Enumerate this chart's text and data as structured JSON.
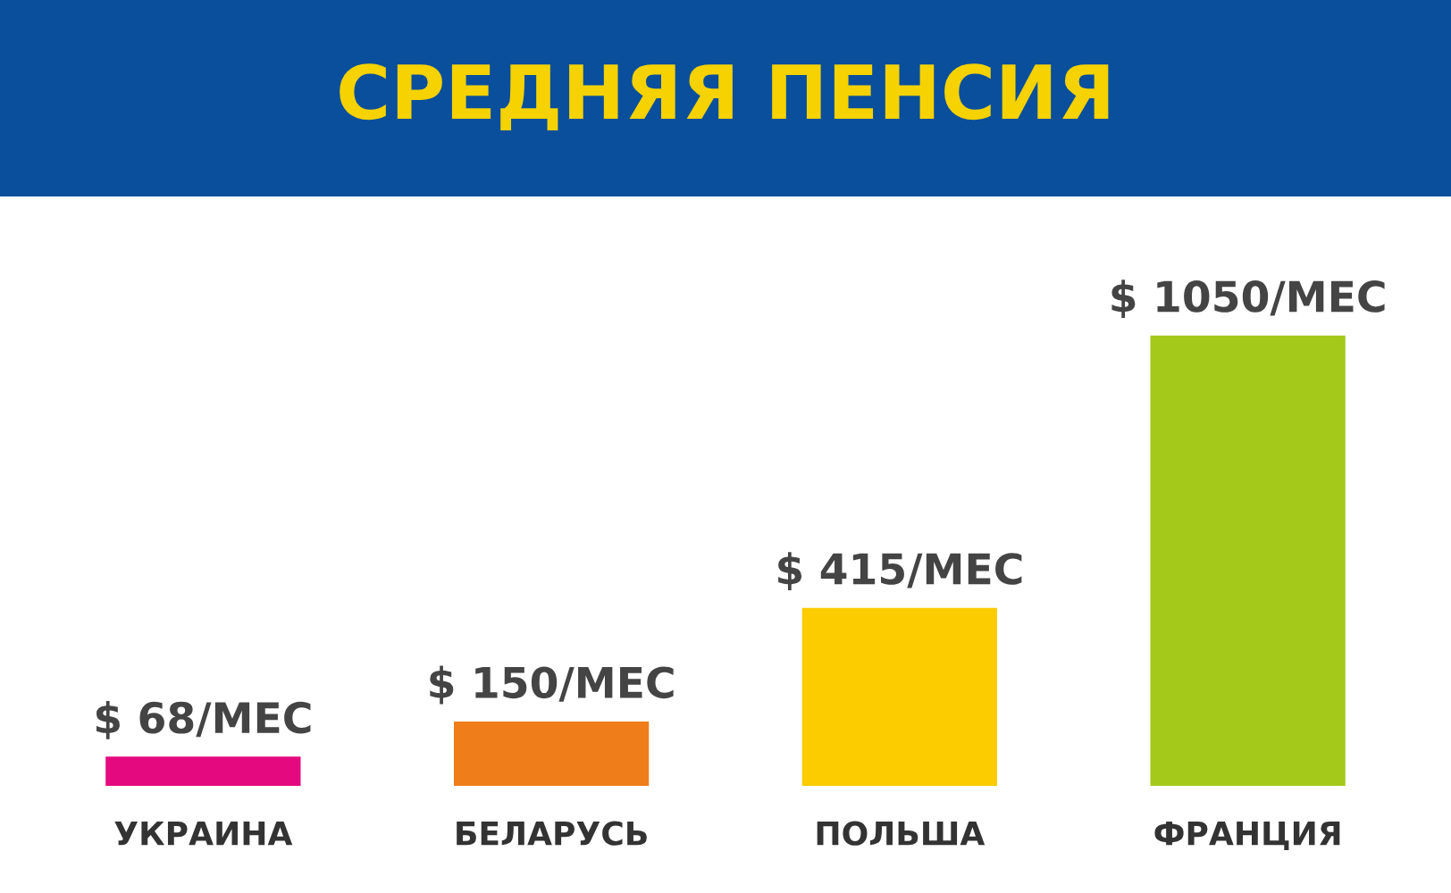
{
  "chart_data": {
    "type": "bar",
    "title": "СРЕДНЯЯ ПЕНСИЯ",
    "categories": [
      "УКРАИНА",
      "БЕЛАРУСЬ",
      "ПОЛЬША",
      "ФРАНЦИЯ"
    ],
    "values": [
      68,
      150,
      415,
      1050
    ],
    "colors": [
      "#e5097f",
      "#ee7d1a",
      "#fccb00",
      "#a4c91a"
    ],
    "value_labels": [
      "$ 68/МЕС",
      "$ 150/МЕС",
      "$ 415/МЕС",
      "$ 1050/МЕС"
    ],
    "tick_labels": "x"
  }
}
